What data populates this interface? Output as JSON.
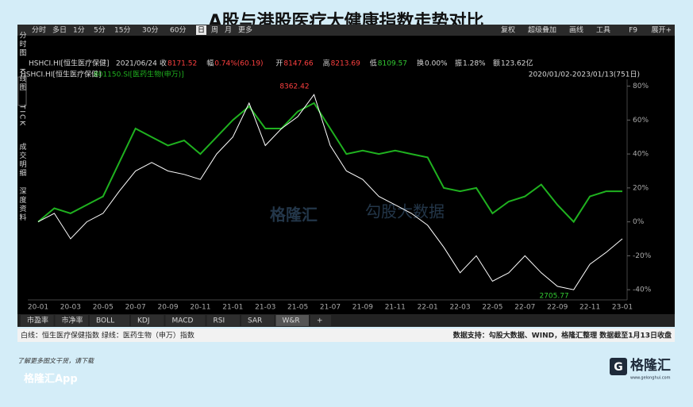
{
  "title": "A股与港股医疗大健康指数走势对比",
  "toolbar": {
    "tabs": [
      "分时",
      "多日",
      "1分",
      "5分",
      "15分",
      "30分",
      "60分",
      "日",
      "周",
      "月",
      "更多"
    ],
    "right": [
      "复权",
      "超级叠加",
      "画线",
      "工具",
      "F9",
      "展开+"
    ]
  },
  "side_tabs": [
    "分时图",
    "K线图",
    "TICK",
    "成交明细",
    "深度资料"
  ],
  "info": {
    "name": "HSHCI.HI[恒生医疗保健]",
    "date": "2021/06/24",
    "items": [
      {
        "label": "收",
        "value": "8171.52",
        "color": "#ff4040"
      },
      {
        "label": "幅",
        "value": "0.74%(60.19)",
        "color": "#ff4040"
      },
      {
        "label": "开",
        "value": "8147.66",
        "color": "#ff4040"
      },
      {
        "label": "高",
        "value": "8213.69",
        "color": "#ff4040"
      },
      {
        "label": "低",
        "value": "8109.57",
        "color": "#33cc33"
      },
      {
        "label": "换",
        "value": "0.00%",
        "color": "#d8d8d8"
      },
      {
        "label": "振",
        "value": "1.28%",
        "color": "#d8d8d8"
      },
      {
        "label": "额",
        "value": "123.62亿",
        "color": "#d8d8d8"
      }
    ]
  },
  "range": "2020/01/02-2023/01/13(751日)",
  "chart_data": {
    "type": "line",
    "categories": [
      "20-01",
      null,
      "20-03",
      null,
      "20-05",
      null,
      "20-07",
      null,
      "20-09",
      null,
      "20-11",
      null,
      "21-01",
      null,
      "21-03",
      null,
      "21-05",
      null,
      "21-07",
      null,
      "21-09",
      null,
      "21-11",
      null,
      "22-01",
      null,
      "22-03",
      null,
      "22-05",
      null,
      "22-07",
      null,
      "22-09",
      null,
      "22-11",
      null,
      "23-01"
    ],
    "series": [
      {
        "name": "HSHCI.HI[恒生医疗保健]",
        "color": "#ffffff",
        "values": [
          0,
          5,
          -10,
          0,
          5,
          18,
          30,
          35,
          30,
          28,
          25,
          40,
          50,
          70,
          45,
          55,
          62,
          75,
          45,
          30,
          25,
          15,
          10,
          5,
          -2,
          -15,
          -30,
          -20,
          -35,
          -30,
          -20,
          -30,
          -38,
          -40,
          -25,
          -18,
          -10
        ]
      },
      {
        "name": "801150.SI[医药生物(申万)]",
        "color": "#1fb11f",
        "values": [
          0,
          8,
          5,
          10,
          15,
          35,
          55,
          50,
          45,
          48,
          40,
          50,
          60,
          68,
          55,
          55,
          65,
          70,
          55,
          40,
          42,
          40,
          42,
          40,
          38,
          20,
          18,
          20,
          5,
          12,
          15,
          22,
          10,
          0,
          15,
          18,
          18
        ]
      }
    ],
    "annotations": [
      "8362.42",
      "2705.77"
    ],
    "ylim": [
      -46,
      84
    ],
    "yticks": [
      {
        "value": 80,
        "label": "80%"
      },
      {
        "value": 60,
        "label": "60%"
      },
      {
        "value": 40,
        "label": "40%"
      },
      {
        "value": 20,
        "label": "20%"
      },
      {
        "value": 0,
        "label": "0%"
      },
      {
        "value": -20,
        "label": "-20%"
      },
      {
        "value": -40,
        "label": "-40%"
      }
    ]
  },
  "indicator_tabs": [
    "市盈率",
    "市净率",
    "BOLL",
    "KDJ",
    "MACD",
    "RSI",
    "SAR",
    "W&R",
    "+"
  ],
  "footer": {
    "left": "白线：恒生医疗保健指数 绿线：医药生物（申万）指数",
    "right": "数据支持：勾股大数据、WIND，格隆汇整理 数据截至1月13日收盘"
  },
  "watermarks": [
    "格隆汇",
    "勾股大数据"
  ],
  "bottom": {
    "prompt": "了解更多图文干货，请下载",
    "app": "格隆汇App",
    "logo": "格隆汇",
    "logo_sub": "www.gelonghui.com"
  }
}
